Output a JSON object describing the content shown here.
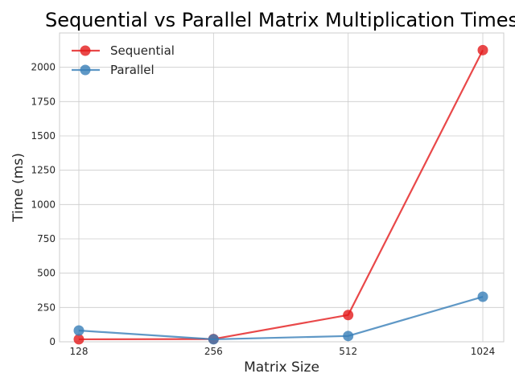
{
  "chart_data": {
    "type": "line",
    "title": "Sequential vs Parallel Matrix Multiplication Times",
    "xlabel": "Matrix Size",
    "ylabel": "Time (ms)",
    "categories": [
      "128",
      "256",
      "512",
      "1024"
    ],
    "ylim": [
      0,
      2250
    ],
    "yticks": [
      0,
      250,
      500,
      750,
      1000,
      1250,
      1500,
      1750,
      2000
    ],
    "grid": true,
    "legend_position": "top-left",
    "series": [
      {
        "name": "Sequential",
        "color": "#e41a1c",
        "values": [
          18,
          20,
          195,
          2125
        ]
      },
      {
        "name": "Parallel",
        "color": "#377eb8",
        "values": [
          82,
          18,
          42,
          328
        ]
      }
    ]
  }
}
